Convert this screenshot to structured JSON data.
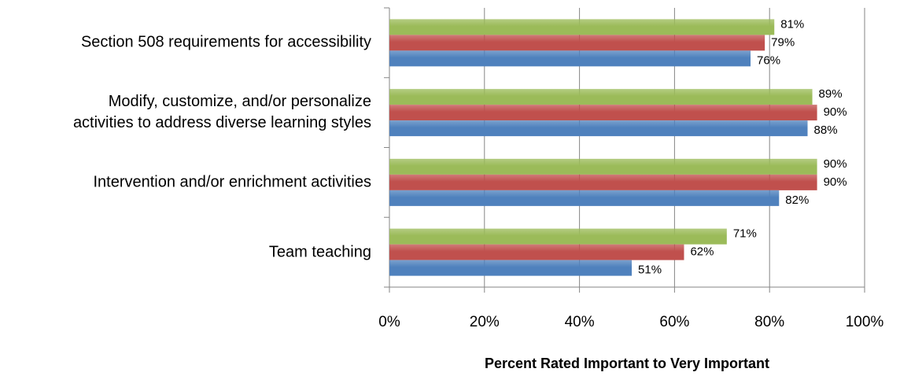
{
  "chart_data": {
    "type": "bar",
    "orientation": "horizontal",
    "x_label": "Percent Rated Important to Very Important",
    "categories": [
      "Section 508 requirements for accessibility",
      "Modify, customize, and/or personalize\nactivities to address diverse learning styles",
      "Intervention and/or enrichment activities",
      "Team teaching"
    ],
    "series": [
      {
        "color": "#9bbb59",
        "values": [
          81,
          89,
          90,
          71
        ],
        "value_labels": [
          "81%",
          "89%",
          "90%",
          "71%"
        ]
      },
      {
        "color": "#c0504d",
        "values": [
          79,
          90,
          90,
          62
        ],
        "value_labels": [
          "79%",
          "90%",
          "90%",
          "62%"
        ]
      },
      {
        "color": "#4f81bd",
        "values": [
          76,
          88,
          82,
          51
        ],
        "value_labels": [
          "76%",
          "88%",
          "82%",
          "51%"
        ]
      }
    ],
    "xlim": [
      0,
      100
    ],
    "xticks": [
      {
        "value": 0,
        "label": "0%"
      },
      {
        "value": 20,
        "label": "20%"
      },
      {
        "value": 40,
        "label": "40%"
      },
      {
        "value": 60,
        "label": "60%"
      },
      {
        "value": 80,
        "label": "80%"
      },
      {
        "value": 100,
        "label": "100%"
      }
    ],
    "grid": true
  }
}
